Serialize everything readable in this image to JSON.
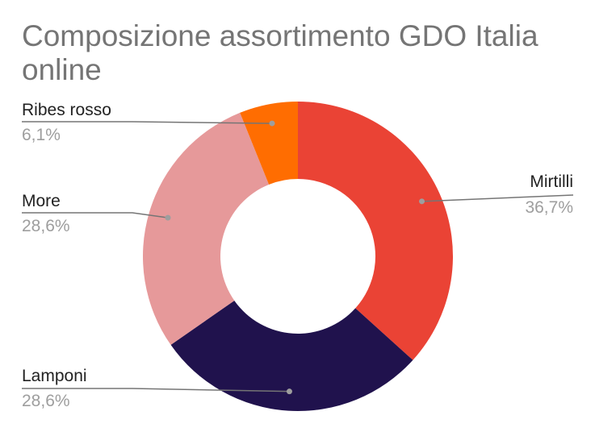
{
  "chart_data": {
    "type": "pie",
    "donut": true,
    "title": "Composizione assortimento GDO Italia online",
    "labels": [
      "Mirtilli",
      "Lamponi",
      "More",
      "Ribes rosso"
    ],
    "values": [
      36.7,
      28.6,
      28.6,
      6.1
    ],
    "value_labels": [
      "36,7%",
      "28,6%",
      "28,6%",
      "6,1%"
    ],
    "colors": [
      "#ea4335",
      "#20124d",
      "#e6999a",
      "#ff6d01"
    ],
    "legend": "callout labels"
  }
}
